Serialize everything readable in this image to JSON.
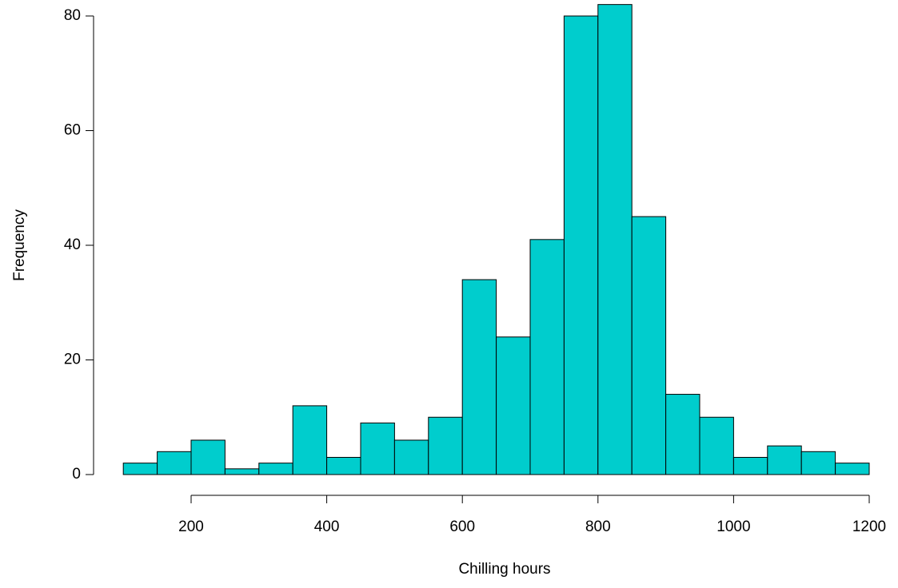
{
  "chart_data": {
    "type": "histogram",
    "xlabel": "Chilling hours",
    "ylabel": "Frequency",
    "bins": [
      100,
      150,
      200,
      250,
      300,
      350,
      400,
      450,
      500,
      550,
      600,
      650,
      700,
      750,
      800,
      850,
      900,
      950,
      1000,
      1050,
      1100,
      1150,
      1200
    ],
    "values": [
      2,
      4,
      6,
      1,
      2,
      12,
      3,
      9,
      6,
      10,
      34,
      24,
      41,
      80,
      82,
      45,
      14,
      10,
      3,
      5,
      4,
      2
    ],
    "color": "#00cdcd",
    "xlim": [
      200,
      1200
    ],
    "xticks": [
      200,
      400,
      600,
      800,
      1000,
      1200
    ],
    "ylim": [
      0,
      80
    ],
    "yticks": [
      0,
      20,
      40,
      60,
      80
    ]
  }
}
